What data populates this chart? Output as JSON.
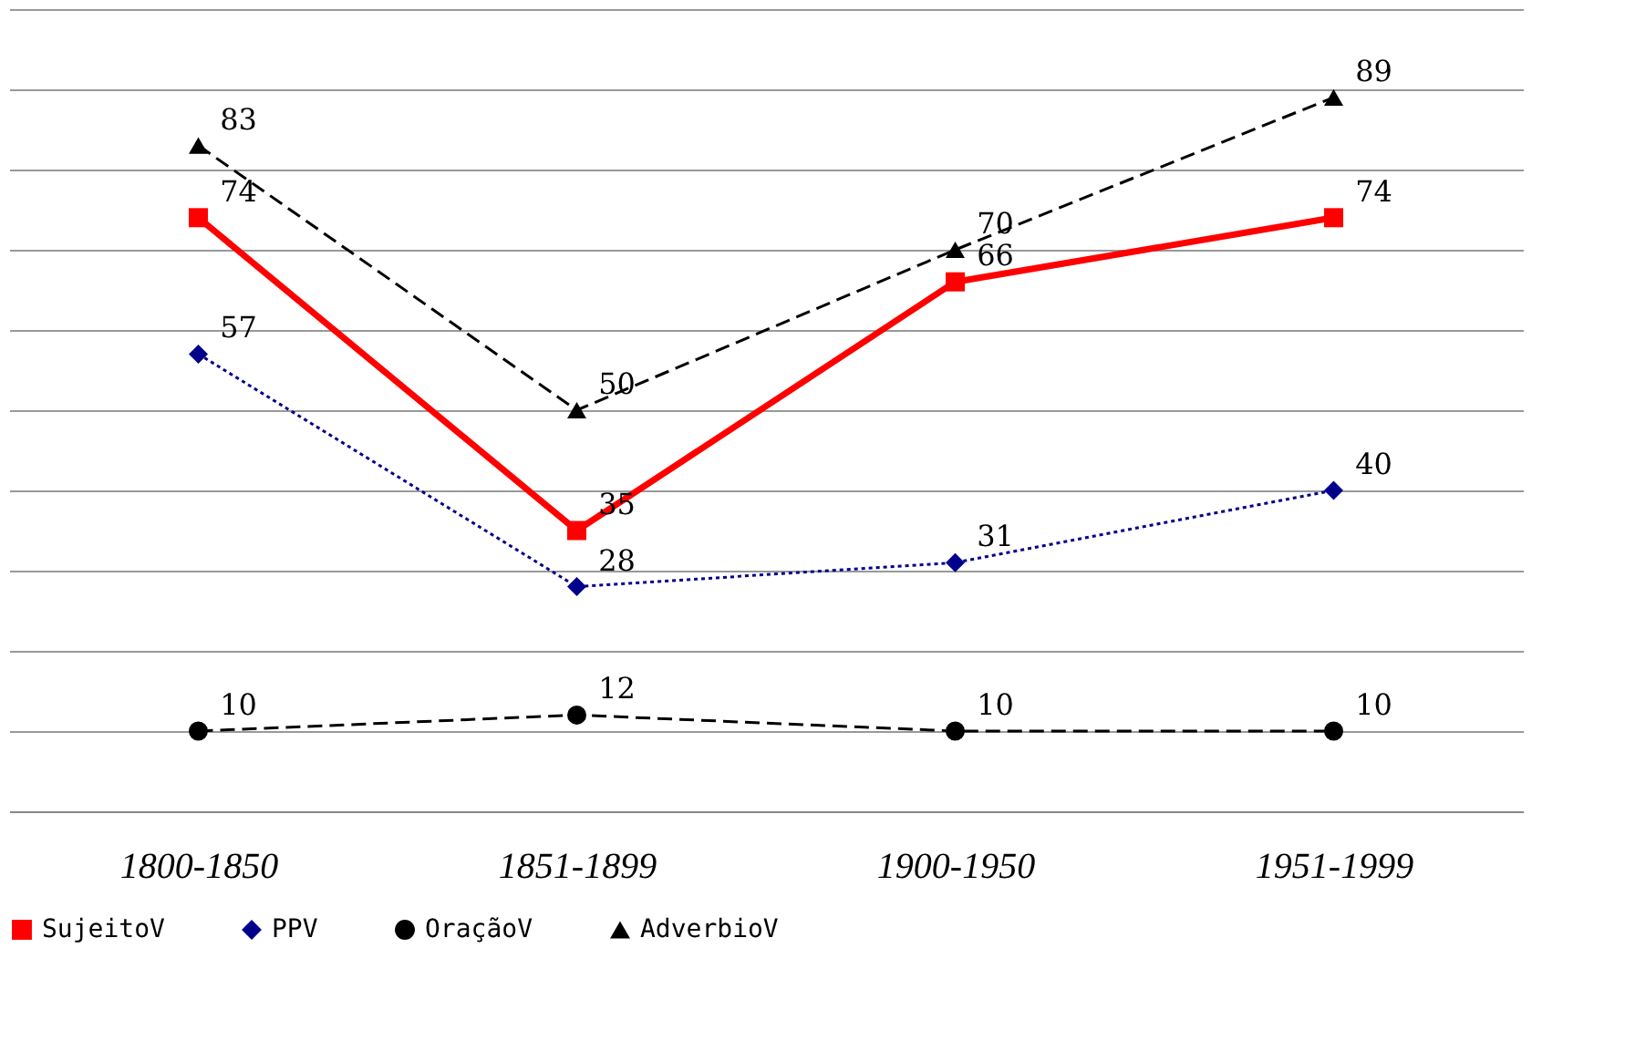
{
  "chart_data": {
    "type": "line",
    "categories": [
      "1800-1850",
      "1851-1899",
      "1900-1950",
      "1951-1999"
    ],
    "series": [
      {
        "name": "SujeitoV",
        "color": "#ff0000",
        "values": [
          74,
          35,
          66,
          74
        ],
        "marker": "square",
        "line_style": "solid"
      },
      {
        "name": "PPV",
        "color": "#00008b",
        "values": [
          57,
          28,
          31,
          40
        ],
        "marker": "diamond",
        "line_style": "dotted"
      },
      {
        "name": "OraçãoV",
        "color": "#000000",
        "values": [
          10,
          12,
          10,
          10
        ],
        "marker": "circle",
        "line_style": "dashed"
      },
      {
        "name": "AdverbioV",
        "color": "#000000",
        "values": [
          83,
          50,
          70,
          89
        ],
        "marker": "triangle",
        "line_style": "dashed"
      }
    ],
    "ylim": [
      0,
      100
    ],
    "yticks": [
      0,
      10,
      20,
      30,
      40,
      50,
      60,
      70,
      80,
      90,
      100
    ],
    "grid": "y",
    "tick_labels": "x",
    "data_labels": true,
    "legend": "bottom"
  }
}
